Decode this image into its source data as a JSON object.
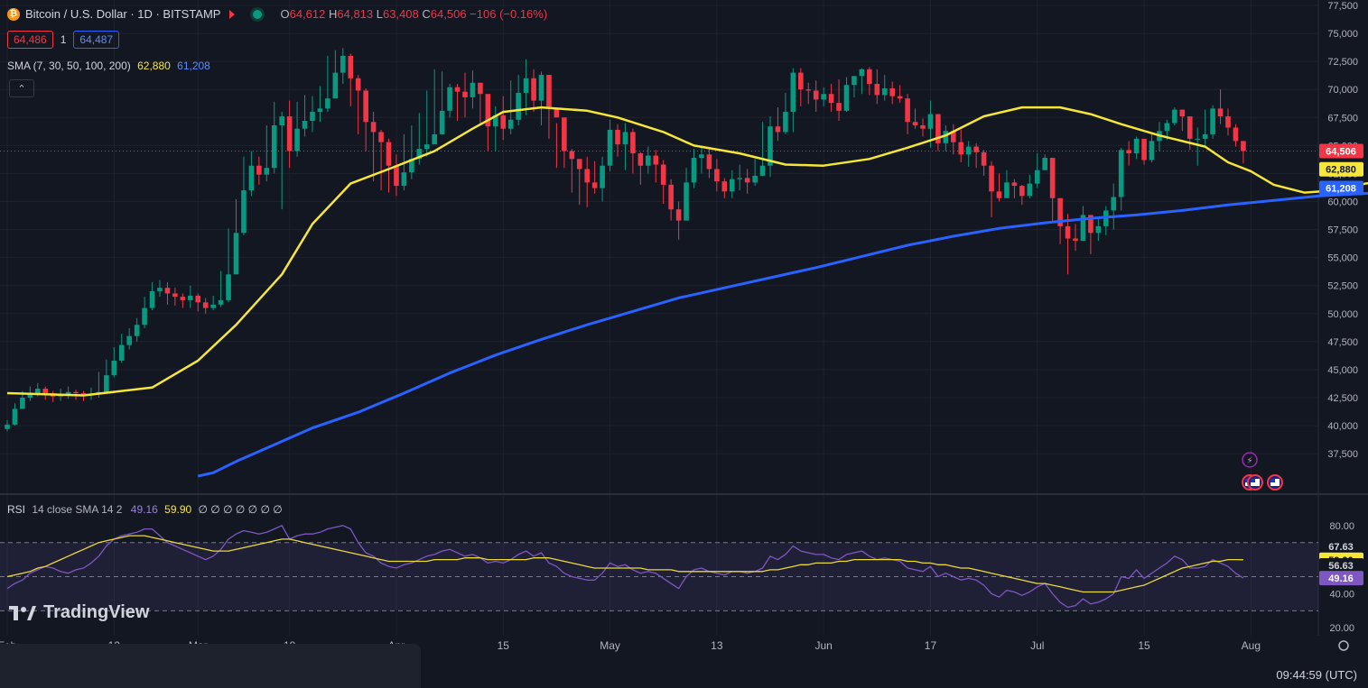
{
  "header": {
    "coin_glyph": "₿",
    "title": "Bitcoin / U.S. Dollar · 1D · BITSTAMP",
    "o_label": "O",
    "o": "64,612",
    "h_label": "H",
    "h": "64,813",
    "l_label": "L",
    "l": "63,408",
    "c_label": "C",
    "c": "64,506",
    "change": "−106 (−0.16%)"
  },
  "price_boxes": {
    "sell": "64,486",
    "spread": "1",
    "buy": "64,487"
  },
  "sma_legend": {
    "label": "SMA (7, 30, 50, 100, 200)",
    "v1": "62,880",
    "v2": "61,208"
  },
  "collapse_glyph": "⌃",
  "rsi_legend": {
    "label": "RSI",
    "params": "14 close SMA 14 2",
    "v1": "49.16",
    "v2": "59.90",
    "zeros": "∅ ∅ ∅ ∅ ∅ ∅ ∅"
  },
  "logo": "TradingView",
  "clock": "09:44:59 (UTC)",
  "colors": {
    "up": "#089981",
    "down": "#f23645",
    "sma_yellow": "#f5e639",
    "sma_blue": "#2962ff",
    "rsi_line": "#7e57c2",
    "rsi_ma": "#e9d93a"
  },
  "chart_data": {
    "type": "candlestick",
    "price_axis": {
      "ticks": [
        37500,
        40000,
        42500,
        45000,
        47500,
        50000,
        52500,
        55000,
        57500,
        60000,
        62500,
        65000,
        67500,
        70000,
        72500,
        75000,
        77500
      ],
      "labels": [
        "37,500",
        "40,000",
        "42,500",
        "45,000",
        "47,500",
        "50,000",
        "52,500",
        "55,000",
        "57,500",
        "60,000",
        "62,500",
        "65,000",
        "67,500",
        "70,000",
        "72,500",
        "75,000",
        "77,500"
      ],
      "range": [
        35500,
        77500
      ]
    },
    "time_axis": {
      "labels": [
        "Feb",
        "12",
        "Mar",
        "18",
        "Apr",
        "15",
        "May",
        "13",
        "Jun",
        "17",
        "Jul",
        "15",
        "Aug"
      ],
      "label_bars": [
        0,
        14,
        25,
        37,
        51,
        65,
        79,
        93,
        107,
        121,
        135,
        149,
        163
      ]
    },
    "last_price": 64506,
    "last_price_label": "64,506",
    "sma_tags": [
      {
        "value": 62880,
        "label": "62,880"
      },
      {
        "value": 61208,
        "label": "61,208"
      }
    ],
    "candles_close": [
      40100,
      41500,
      42500,
      42900,
      43300,
      42900,
      42600,
      42800,
      43000,
      42900,
      42700,
      42800,
      43000,
      44500,
      45800,
      47200,
      48000,
      49000,
      50500,
      52000,
      52300,
      51800,
      51500,
      51200,
      51600,
      51000,
      50500,
      50800,
      51200,
      53500,
      57200,
      61000,
      63200,
      62400,
      63000,
      66800,
      67600,
      64500,
      66500,
      67200,
      68000,
      68300,
      69200,
      71500,
      73000,
      71000,
      69900,
      67100,
      66200,
      65300,
      63200,
      61400,
      62600,
      63800,
      64700,
      65100,
      66000,
      68100,
      70200,
      69800,
      69300,
      70600,
      69600,
      66700,
      67700,
      66500,
      67300,
      69700,
      71000,
      69000,
      71300,
      68300,
      67500,
      64500,
      63800,
      62900,
      61700,
      61200,
      63200,
      66400,
      65100,
      66200,
      64300,
      63200,
      64100,
      63300,
      61500,
      59300,
      58300,
      61700,
      63900,
      64200,
      62900,
      61800,
      60900,
      62000,
      62100,
      61700,
      62300,
      63200,
      66700,
      66200,
      68000,
      71500,
      70000,
      69900,
      69100,
      69600,
      68800,
      68100,
      70400,
      71200,
      71800,
      70500,
      69500,
      70100,
      69400,
      69200,
      67100,
      66800,
      66500,
      67800,
      65200,
      66300,
      65300,
      64200,
      64900,
      64400,
      63200,
      60900,
      60300,
      61700,
      61400,
      60500,
      61600,
      62800,
      63900,
      60300,
      57800,
      56700,
      56500,
      58800,
      57200,
      57800,
      59200,
      60400,
      64600,
      64300,
      65600,
      63700,
      65400,
      66300,
      67000,
      68200,
      67600,
      65600,
      65600,
      66000,
      68300,
      67600,
      66600,
      65400,
      64506
    ],
    "candles_wick": [
      [
        39500,
        40500
      ],
      [
        40000,
        42000
      ],
      [
        41800,
        43100
      ],
      [
        42200,
        43500
      ],
      [
        42600,
        43800
      ],
      [
        42300,
        43500
      ],
      [
        42100,
        43100
      ],
      [
        42200,
        43300
      ],
      [
        42400,
        43500
      ],
      [
        42300,
        43200
      ],
      [
        42200,
        43100
      ],
      [
        42300,
        43400
      ],
      [
        42500,
        44800
      ],
      [
        42900,
        45900
      ],
      [
        44300,
        47000
      ],
      [
        45600,
        48200
      ],
      [
        46800,
        48700
      ],
      [
        47500,
        49600
      ],
      [
        48700,
        51500
      ],
      [
        50300,
        52800
      ],
      [
        51500,
        53000
      ],
      [
        50800,
        52800
      ],
      [
        50700,
        52300
      ],
      [
        50500,
        51800
      ],
      [
        50500,
        52500
      ],
      [
        50200,
        51800
      ],
      [
        50000,
        51400
      ],
      [
        50300,
        51600
      ],
      [
        50600,
        53800
      ],
      [
        51000,
        57600
      ],
      [
        53500,
        60200
      ],
      [
        57000,
        64000
      ],
      [
        60500,
        64500
      ],
      [
        61500,
        64000
      ],
      [
        61800,
        66800
      ],
      [
        62500,
        68900
      ],
      [
        59300,
        68000
      ],
      [
        63000,
        69000
      ],
      [
        64000,
        68900
      ],
      [
        65800,
        69500
      ],
      [
        66200,
        69400
      ],
      [
        67100,
        70300
      ],
      [
        68000,
        73000
      ],
      [
        69500,
        73500
      ],
      [
        70500,
        73700
      ],
      [
        68500,
        73200
      ],
      [
        66000,
        71300
      ],
      [
        64500,
        70100
      ],
      [
        61800,
        68000
      ],
      [
        61000,
        66400
      ],
      [
        60800,
        65600
      ],
      [
        60500,
        64200
      ],
      [
        61000,
        66000
      ],
      [
        62000,
        66800
      ],
      [
        63300,
        67900
      ],
      [
        64000,
        69900
      ],
      [
        65300,
        71800
      ],
      [
        67200,
        71600
      ],
      [
        67500,
        70500
      ],
      [
        67200,
        70500
      ],
      [
        67500,
        71500
      ],
      [
        68300,
        71700
      ],
      [
        66800,
        70200
      ],
      [
        64500,
        68000
      ],
      [
        64500,
        68500
      ],
      [
        65500,
        69400
      ],
      [
        66000,
        70800
      ],
      [
        66800,
        71300
      ],
      [
        67700,
        72700
      ],
      [
        68000,
        71800
      ],
      [
        66800,
        71600
      ],
      [
        65600,
        68500
      ],
      [
        63000,
        67000
      ],
      [
        63000,
        66200
      ],
      [
        60800,
        64700
      ],
      [
        59700,
        63000
      ],
      [
        59500,
        64000
      ],
      [
        60700,
        63600
      ],
      [
        60000,
        64000
      ],
      [
        62700,
        67300
      ],
      [
        64000,
        66900
      ],
      [
        62800,
        67000
      ],
      [
        62500,
        66500
      ],
      [
        61500,
        64400
      ],
      [
        62500,
        64900
      ],
      [
        61700,
        64600
      ],
      [
        59800,
        63700
      ],
      [
        58300,
        62000
      ],
      [
        56600,
        60000
      ],
      [
        58500,
        63000
      ],
      [
        61200,
        64700
      ],
      [
        62500,
        64800
      ],
      [
        62100,
        64700
      ],
      [
        60900,
        63800
      ],
      [
        60300,
        62100
      ],
      [
        60300,
        62800
      ],
      [
        61000,
        63300
      ],
      [
        60700,
        62900
      ],
      [
        61400,
        63800
      ],
      [
        62300,
        67100
      ],
      [
        62200,
        67600
      ],
      [
        65400,
        68400
      ],
      [
        66000,
        69700
      ],
      [
        66200,
        71900
      ],
      [
        68500,
        71900
      ],
      [
        68700,
        70600
      ],
      [
        68000,
        70800
      ],
      [
        68500,
        70200
      ],
      [
        68000,
        70500
      ],
      [
        67200,
        70900
      ],
      [
        68000,
        71100
      ],
      [
        69300,
        71200
      ],
      [
        69600,
        71900
      ],
      [
        69500,
        72000
      ],
      [
        68700,
        71800
      ],
      [
        69000,
        71300
      ],
      [
        68700,
        70700
      ],
      [
        68800,
        70400
      ],
      [
        66000,
        69600
      ],
      [
        66500,
        68300
      ],
      [
        65800,
        67400
      ],
      [
        64800,
        69000
      ],
      [
        64500,
        67800
      ],
      [
        64500,
        66800
      ],
      [
        64200,
        66900
      ],
      [
        63500,
        66400
      ],
      [
        63100,
        65400
      ],
      [
        63000,
        65200
      ],
      [
        62300,
        64600
      ],
      [
        58600,
        63600
      ],
      [
        60000,
        62500
      ],
      [
        60500,
        62800
      ],
      [
        60300,
        62000
      ],
      [
        59700,
        61500
      ],
      [
        60300,
        62400
      ],
      [
        61200,
        64300
      ],
      [
        62800,
        64200
      ],
      [
        58100,
        62600
      ],
      [
        56200,
        59000
      ],
      [
        53500,
        58900
      ],
      [
        55600,
        58000
      ],
      [
        56500,
        59600
      ],
      [
        55300,
        58100
      ],
      [
        56500,
        58500
      ],
      [
        57000,
        59600
      ],
      [
        57500,
        61600
      ],
      [
        59200,
        64800
      ],
      [
        63200,
        65400
      ],
      [
        63800,
        65800
      ],
      [
        63300,
        64900
      ],
      [
        63500,
        66100
      ],
      [
        64500,
        67100
      ],
      [
        65500,
        67300
      ],
      [
        66800,
        68400
      ],
      [
        66300,
        68100
      ],
      [
        64600,
        67400
      ],
      [
        63200,
        66600
      ],
      [
        65000,
        68200
      ],
      [
        65600,
        68600
      ],
      [
        66900,
        70000
      ],
      [
        65900,
        68300
      ],
      [
        64900,
        66900
      ],
      [
        63408,
        64813
      ]
    ],
    "sma_yellow": [
      [
        0,
        42900
      ],
      [
        10,
        42700
      ],
      [
        19,
        43400
      ],
      [
        25,
        45800
      ],
      [
        30,
        49000
      ],
      [
        36,
        53500
      ],
      [
        40,
        58000
      ],
      [
        45,
        61600
      ],
      [
        50,
        62900
      ],
      [
        56,
        64500
      ],
      [
        61,
        66500
      ],
      [
        65,
        68000
      ],
      [
        70,
        68400
      ],
      [
        76,
        68100
      ],
      [
        80,
        67500
      ],
      [
        86,
        66200
      ],
      [
        90,
        65000
      ],
      [
        96,
        64300
      ],
      [
        102,
        63300
      ],
      [
        107,
        63200
      ],
      [
        113,
        63800
      ],
      [
        118,
        64800
      ],
      [
        123,
        65900
      ],
      [
        128,
        67600
      ],
      [
        133,
        68400
      ],
      [
        138,
        68400
      ],
      [
        142,
        67800
      ],
      [
        146,
        66900
      ],
      [
        151,
        65900
      ],
      [
        157,
        64900
      ],
      [
        160,
        63500
      ],
      [
        163,
        62700
      ],
      [
        166,
        61500
      ],
      [
        170,
        60800
      ],
      [
        174,
        61000
      ],
      [
        178,
        61600
      ],
      [
        183,
        62100
      ],
      [
        188,
        62700
      ],
      [
        193,
        62880
      ]
    ],
    "sma_blue": [
      [
        25,
        35500
      ],
      [
        27,
        35800
      ],
      [
        30,
        36800
      ],
      [
        36,
        38600
      ],
      [
        40,
        39800
      ],
      [
        46,
        41200
      ],
      [
        52,
        42900
      ],
      [
        58,
        44700
      ],
      [
        64,
        46300
      ],
      [
        70,
        47700
      ],
      [
        76,
        49000
      ],
      [
        82,
        50200
      ],
      [
        88,
        51400
      ],
      [
        94,
        52300
      ],
      [
        100,
        53200
      ],
      [
        106,
        54100
      ],
      [
        112,
        55100
      ],
      [
        118,
        56100
      ],
      [
        124,
        56900
      ],
      [
        130,
        57600
      ],
      [
        136,
        58100
      ],
      [
        142,
        58500
      ],
      [
        148,
        58800
      ],
      [
        154,
        59200
      ],
      [
        160,
        59700
      ],
      [
        166,
        60100
      ],
      [
        172,
        60500
      ],
      [
        180,
        60800
      ],
      [
        188,
        61000
      ],
      [
        193,
        61208
      ]
    ],
    "markers": {
      "lightning": "⚡",
      "flag_count": 3
    },
    "rsi_axis": {
      "ticks": [
        20,
        40,
        80
      ],
      "labels": [
        "20.00",
        "40.00",
        "80.00"
      ],
      "levels": [
        30,
        50,
        70
      ],
      "range": [
        18,
        82
      ]
    },
    "rsi_tags": [
      {
        "value": 67.63,
        "label": "67.63",
        "style": "plain"
      },
      {
        "value": 59.9,
        "label": "59.90",
        "style": "yellow"
      },
      {
        "value": 56.63,
        "label": "56.63",
        "style": "plain"
      },
      {
        "value": 49.16,
        "label": "49.16",
        "style": "purple"
      }
    ],
    "rsi": [
      43,
      46,
      48,
      52,
      54,
      56,
      55,
      53,
      52,
      54,
      55,
      58,
      62,
      68,
      72,
      74,
      75,
      76,
      78,
      78,
      74,
      70,
      68,
      66,
      64,
      62,
      60,
      62,
      66,
      72,
      75,
      77,
      76,
      75,
      76,
      78,
      80,
      72,
      74,
      75,
      75,
      76,
      78,
      79,
      80,
      78,
      70,
      64,
      62,
      58,
      56,
      55,
      57,
      58,
      60,
      62,
      63,
      65,
      66,
      64,
      62,
      63,
      61,
      58,
      59,
      58,
      60,
      63,
      65,
      62,
      64,
      58,
      56,
      52,
      50,
      49,
      48,
      48,
      52,
      58,
      56,
      57,
      54,
      52,
      53,
      52,
      49,
      46,
      43,
      50,
      54,
      55,
      53,
      52,
      51,
      53,
      53,
      52,
      53,
      55,
      62,
      60,
      63,
      68,
      65,
      64,
      63,
      63,
      61,
      60,
      63,
      64,
      65,
      62,
      60,
      61,
      60,
      59,
      55,
      54,
      53,
      56,
      50,
      52,
      50,
      48,
      49,
      48,
      45,
      40,
      38,
      42,
      41,
      39,
      41,
      44,
      46,
      40,
      35,
      32,
      33,
      37,
      34,
      35,
      37,
      40,
      50,
      49,
      54,
      49,
      52,
      55,
      58,
      62,
      60,
      55,
      55,
      56,
      60,
      58,
      56,
      52,
      49.16
    ],
    "rsi_ma": [
      50,
      51,
      52,
      53,
      55,
      56,
      58,
      60,
      62,
      64,
      66,
      68,
      70,
      71,
      72,
      73,
      74,
      74,
      74,
      73,
      72,
      71,
      70,
      69,
      68,
      67,
      66,
      65,
      65,
      65,
      66,
      67,
      68,
      69,
      70,
      71,
      72,
      72,
      71,
      70,
      69,
      68,
      67,
      66,
      65,
      64,
      63,
      62,
      61,
      60,
      59,
      59,
      59,
      59,
      59,
      59,
      60,
      60,
      60,
      60,
      61,
      61,
      61,
      60,
      60,
      60,
      60,
      60,
      60,
      61,
      61,
      61,
      60,
      59,
      58,
      57,
      56,
      55,
      55,
      55,
      55,
      55,
      55,
      55,
      54,
      54,
      54,
      54,
      53,
      53,
      53,
      53,
      53,
      53,
      53,
      53,
      53,
      53,
      53,
      53,
      54,
      54,
      55,
      56,
      57,
      57,
      58,
      58,
      58,
      59,
      59,
      60,
      60,
      60,
      60,
      60,
      60,
      60,
      59,
      59,
      58,
      58,
      57,
      57,
      56,
      55,
      55,
      54,
      53,
      52,
      51,
      50,
      49,
      48,
      47,
      46,
      46,
      45,
      44,
      43,
      42,
      41,
      41,
      41,
      41,
      41,
      42,
      43,
      44,
      45,
      47,
      49,
      51,
      53,
      55,
      56,
      57,
      58,
      59,
      59,
      60,
      60,
      59.9
    ]
  }
}
